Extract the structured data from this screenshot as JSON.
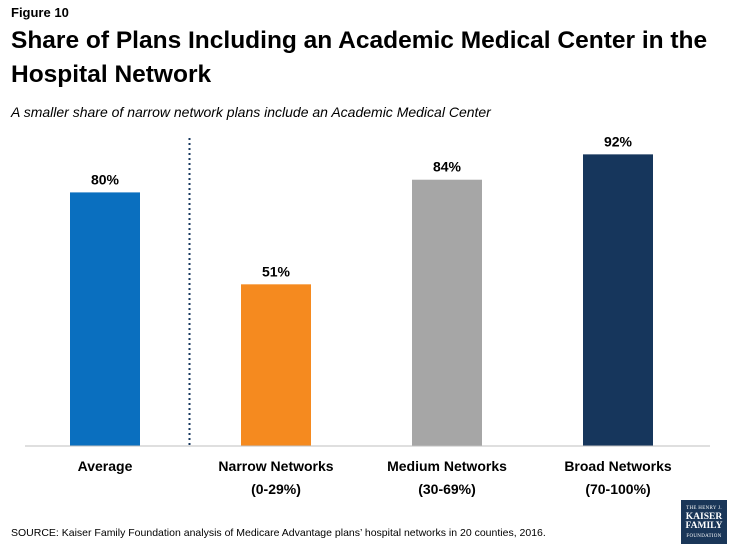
{
  "figure_label": "Figure 10",
  "chart_data": {
    "type": "bar",
    "title": "Share of Plans Including an Academic Medical Center in the Hospital Network",
    "subtitle": "A smaller share of narrow network plans include an Academic Medical Center",
    "categories": [
      {
        "line1": "Average",
        "line2": ""
      },
      {
        "line1": "Narrow Networks",
        "line2": "(0-29%)"
      },
      {
        "line1": "Medium Networks",
        "line2": "(30-69%)"
      },
      {
        "line1": "Broad Networks",
        "line2": "(70-100%)"
      }
    ],
    "values": [
      80,
      51,
      84,
      92
    ],
    "labels": [
      "80%",
      "51%",
      "84%",
      "92%"
    ],
    "colors": [
      "#0a6fbf",
      "#f58a1f",
      "#a6a6a6",
      "#16365c"
    ],
    "ylim": [
      0,
      100
    ],
    "xlabel": "",
    "ylabel": "",
    "grid": false,
    "separator_after_index": 0
  },
  "source": "SOURCE: Kaiser Family Foundation analysis of Medicare Advantage plans’ hospital networks in 20 counties, 2016.",
  "logo": {
    "line1": "THE HENRY J.",
    "line2": "KAISER",
    "line3": "FAMILY",
    "line4": "FOUNDATION"
  }
}
